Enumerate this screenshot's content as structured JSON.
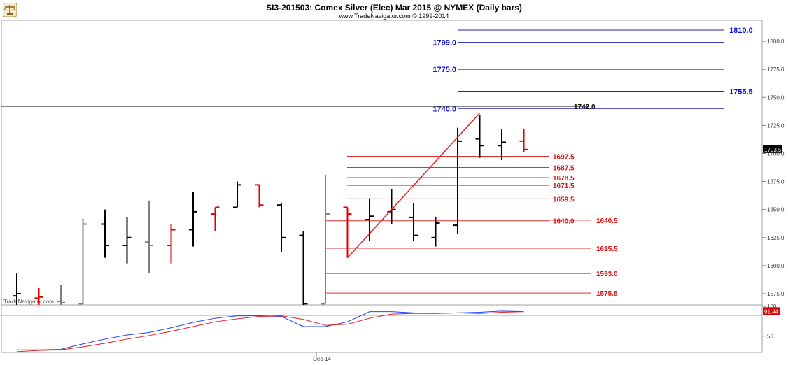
{
  "header": {
    "title": "SI3-201503:  Comex Silver (Elec) Mar 2015 @ NYMEX  (Daily bars)",
    "subtitle": "www.TradeNavigator.com © 1999-2014",
    "watermark": "TradeNavigator.com",
    "logo_icon": "scales-icon"
  },
  "chart_data": [
    {
      "type": "ohlc",
      "ylim": [
        1565,
        1815
      ],
      "price_axis_ticks": [
        "1800.0",
        "1775.0",
        "1750.0",
        "1725.0",
        "1700.0",
        "1675.0",
        "1650.0",
        "1625.0",
        "1600.0",
        "1575.0"
      ],
      "price_axis_tick_values": [
        1800,
        1775,
        1750,
        1725,
        1700,
        1675,
        1650,
        1625,
        1600,
        1575
      ],
      "last_price": "1703.5",
      "last_price_value": 1703.5,
      "x_tick_label": "Dec-14",
      "bars": [
        {
          "o": 1573,
          "h": 1593,
          "l": 1565,
          "c": 1575,
          "color": "#000000"
        },
        {
          "o": 1571,
          "h": 1580,
          "l": 1565,
          "c": 1572,
          "color": "#e00000"
        },
        {
          "o": 1568,
          "h": 1583,
          "l": 1565,
          "c": 1567,
          "color": "#808080"
        },
        {
          "o": 1566,
          "h": 1642,
          "l": 1566,
          "c": 1637,
          "color": "#808080"
        },
        {
          "o": 1637,
          "h": 1650,
          "l": 1607,
          "c": 1618,
          "color": "#000000"
        },
        {
          "o": 1618,
          "h": 1643,
          "l": 1602,
          "c": 1625,
          "color": "#000000"
        },
        {
          "o": 1621,
          "h": 1658,
          "l": 1593,
          "c": 1618,
          "color": "#808080"
        },
        {
          "o": 1618,
          "h": 1637,
          "l": 1602,
          "c": 1632,
          "color": "#e00000"
        },
        {
          "o": 1632,
          "h": 1666,
          "l": 1617,
          "c": 1648,
          "color": "#000000"
        },
        {
          "o": 1646,
          "h": 1652,
          "l": 1631,
          "c": 1652,
          "color": "#e00000"
        },
        {
          "o": 1652,
          "h": 1675,
          "l": 1652,
          "c": 1672,
          "color": "#000000"
        },
        {
          "o": 1672,
          "h": 1672,
          "l": 1652,
          "c": 1654,
          "color": "#e00000"
        },
        {
          "o": 1654,
          "h": 1656,
          "l": 1612,
          "c": 1625,
          "color": "#000000"
        },
        {
          "o": 1627,
          "h": 1631,
          "l": 1565,
          "c": 1566,
          "color": "#000000"
        },
        {
          "o": 1566,
          "h": 1681,
          "l": 1566,
          "c": 1646,
          "color": "#808080"
        },
        {
          "o": 1652,
          "h": 1652,
          "l": 1607,
          "c": 1646,
          "color": "#e00000"
        },
        {
          "o": 1641,
          "h": 1660,
          "l": 1622,
          "c": 1644,
          "color": "#000000"
        },
        {
          "o": 1648,
          "h": 1668,
          "l": 1637,
          "c": 1650,
          "color": "#000000"
        },
        {
          "o": 1643,
          "h": 1656,
          "l": 1622,
          "c": 1627,
          "color": "#000000"
        },
        {
          "o": 1625,
          "h": 1643,
          "l": 1617,
          "c": 1638,
          "color": "#000000"
        },
        {
          "o": 1636,
          "h": 1723,
          "l": 1628,
          "c": 1711,
          "color": "#000000"
        },
        {
          "o": 1713,
          "h": 1734,
          "l": 1696,
          "c": 1707,
          "color": "#000000"
        },
        {
          "o": 1707,
          "h": 1722,
          "l": 1694,
          "c": 1710,
          "color": "#000000"
        },
        {
          "o": 1711,
          "h": 1722,
          "l": 1701,
          "c": 1703.5,
          "color": "#e00000"
        }
      ],
      "blue_levels": [
        {
          "label": "1810.0",
          "value": 1810.0
        },
        {
          "label": "1799.0",
          "value": 1799.0
        },
        {
          "label": "1775.0",
          "value": 1775.0
        },
        {
          "label": "1755.5",
          "value": 1755.5
        },
        {
          "label": "1740.0",
          "value": 1740.0
        }
      ],
      "black_level": {
        "label": "1742.0",
        "value": 1742.0
      },
      "red_levels": [
        {
          "label": "1697.5",
          "value": 1697.5
        },
        {
          "label": "1687.5",
          "value": 1687.5
        },
        {
          "label": "1678.5",
          "value": 1678.5
        },
        {
          "label": "1671.5",
          "value": 1671.5
        },
        {
          "label": "1659.5",
          "value": 1659.5
        },
        {
          "label": "1640.0",
          "value": 1640.0
        },
        {
          "label": "1640.5",
          "value": 1640.5
        },
        {
          "label": "1615.5",
          "value": 1615.5
        },
        {
          "label": "1593.0",
          "value": 1593.0
        },
        {
          "label": "1575.5",
          "value": 1575.5
        }
      ],
      "trendline": {
        "from_bar": 15,
        "from_value": 1607,
        "to_bar": 21,
        "to_value": 1736
      }
    },
    {
      "type": "line",
      "ylim": [
        25,
        100
      ],
      "axis_ticks": [
        "100",
        "50"
      ],
      "axis_tick_values": [
        100,
        50
      ],
      "last_value": "91.44",
      "last_value_num": 91.44,
      "reference_level": 85,
      "series": [
        {
          "color": "#2040ff",
          "values": [
            27,
            27,
            28,
            37,
            45,
            52,
            56,
            64,
            73,
            80,
            84,
            84,
            83,
            66,
            66,
            74,
            91,
            91,
            89,
            88,
            89,
            90,
            92,
            91
          ]
        },
        {
          "color": "#e02020",
          "values": [
            24,
            26,
            27,
            32,
            38,
            45,
            51,
            58,
            66,
            74,
            79,
            83,
            84,
            78,
            68,
            70,
            80,
            87,
            88,
            88,
            89,
            88,
            90,
            91
          ]
        }
      ]
    }
  ]
}
